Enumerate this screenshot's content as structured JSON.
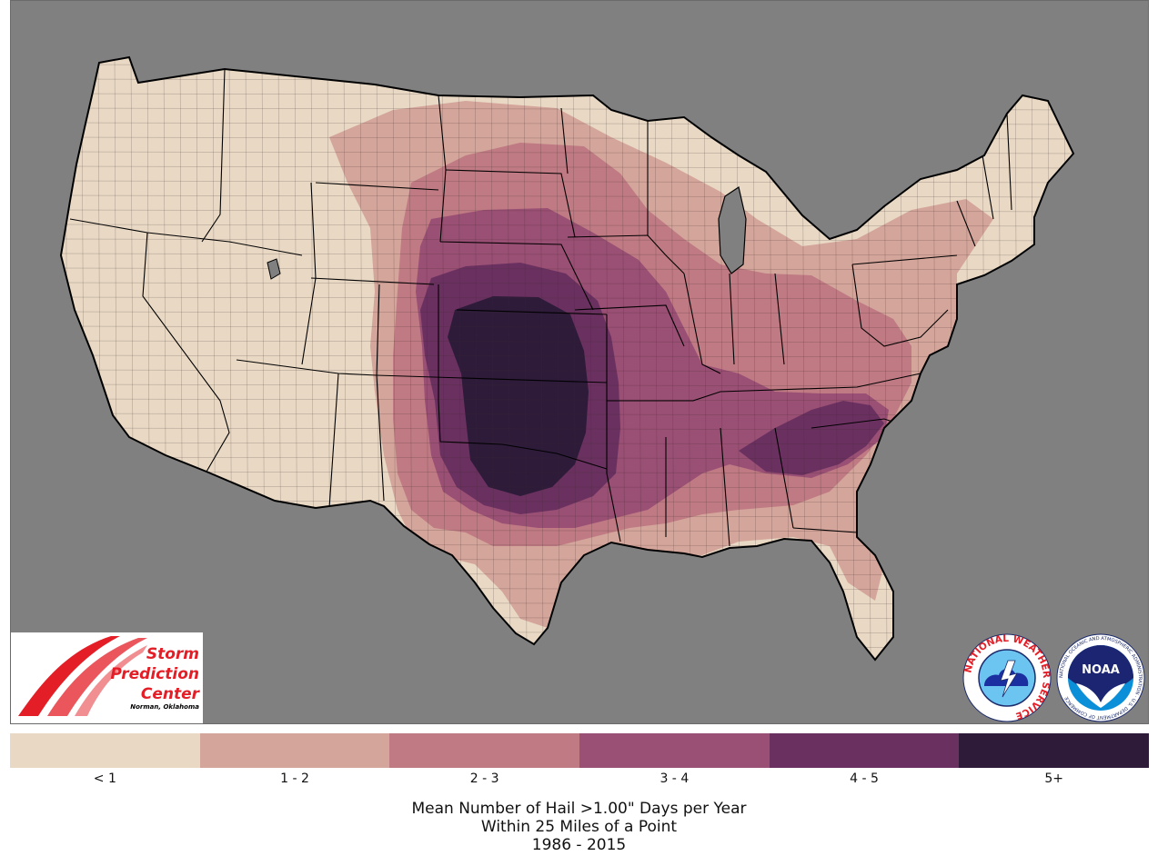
{
  "map": {
    "background_color": "#808080",
    "land_color": "#e6d5c3",
    "border_color": "#000000"
  },
  "legend": {
    "bins": [
      {
        "label": "< 1",
        "color": "#e8d8c4"
      },
      {
        "label": "1 - 2",
        "color": "#d4a59a"
      },
      {
        "label": "2 - 3",
        "color": "#bf7a83"
      },
      {
        "label": "3 - 4",
        "color": "#9a4f74"
      },
      {
        "label": "4 - 5",
        "color": "#6a3160"
      },
      {
        "label": "5+",
        "color": "#2e1b3a"
      }
    ]
  },
  "caption": {
    "line1": "Mean Number of Hail >1.00\" Days per Year",
    "line2": "Within 25 Miles of a Point",
    "line3": "1986 - 2015"
  },
  "logos": {
    "spc": {
      "line1": "Storm",
      "line2": "Prediction",
      "line3": "Center",
      "subtitle": "Norman, Oklahoma"
    },
    "nws": {
      "text": "NATIONAL WEATHER SERVICE"
    },
    "noaa": {
      "text": "NOAA",
      "ring_text": "NATIONAL OCEANIC AND ATMOSPHERIC ADMINISTRATION · U.S. DEPARTMENT OF COMMERCE"
    }
  }
}
